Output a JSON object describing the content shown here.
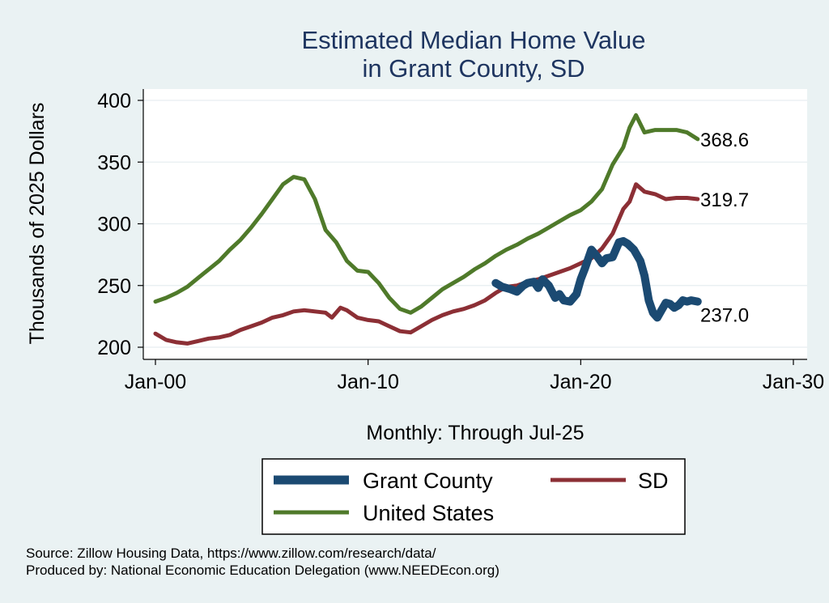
{
  "chart_data": {
    "type": "line",
    "title": "Estimated Median Home Value",
    "subtitle": "in Grant County, SD",
    "xlabel": "Monthly: Through Jul-25",
    "ylabel": "Thousands of 2025 Dollars",
    "xlim": [
      2000,
      2030
    ],
    "ylim": [
      200,
      400
    ],
    "x_tick_values": [
      2000,
      2010,
      2020,
      2030
    ],
    "x_ticks": [
      "Jan-00",
      "Jan-10",
      "Jan-20",
      "Jan-30"
    ],
    "y_ticks": [
      200,
      250,
      300,
      350,
      400
    ],
    "grid": true,
    "series": [
      {
        "name": "Grant County",
        "color": "#1b4a72",
        "end_label": "237.0",
        "x": [
          2016.0,
          2016.3,
          2016.7,
          2017.0,
          2017.3,
          2017.5,
          2017.8,
          2018.0,
          2018.2,
          2018.5,
          2018.8,
          2019.0,
          2019.2,
          2019.5,
          2019.8,
          2020.0,
          2020.2,
          2020.5,
          2020.8,
          2021.0,
          2021.2,
          2021.5,
          2021.8,
          2022.0,
          2022.2,
          2022.5,
          2022.8,
          2023.0,
          2023.2,
          2023.4,
          2023.6,
          2023.8,
          2024.0,
          2024.2,
          2024.4,
          2024.6,
          2024.8,
          2025.0,
          2025.2,
          2025.5
        ],
        "values": [
          252,
          249,
          247,
          245,
          250,
          252,
          253,
          248,
          255,
          250,
          240,
          243,
          238,
          237,
          243,
          255,
          264,
          279,
          273,
          268,
          272,
          273,
          285,
          286,
          284,
          279,
          270,
          258,
          238,
          228,
          224,
          230,
          236,
          235,
          232,
          234,
          238,
          237,
          238,
          237
        ]
      },
      {
        "name": "SD",
        "color": "#8c2f35",
        "end_label": "319.7",
        "x": [
          2000.0,
          2000.5,
          2001.0,
          2001.5,
          2002.0,
          2002.5,
          2003.0,
          2003.5,
          2004.0,
          2004.5,
          2005.0,
          2005.5,
          2006.0,
          2006.5,
          2007.0,
          2007.5,
          2008.0,
          2008.3,
          2008.7,
          2009.0,
          2009.5,
          2010.0,
          2010.5,
          2011.0,
          2011.5,
          2012.0,
          2012.5,
          2013.0,
          2013.5,
          2014.0,
          2014.5,
          2015.0,
          2015.5,
          2016.0,
          2016.5,
          2017.0,
          2017.5,
          2018.0,
          2018.5,
          2019.0,
          2019.5,
          2020.0,
          2020.5,
          2021.0,
          2021.5,
          2022.0,
          2022.3,
          2022.6,
          2023.0,
          2023.5,
          2024.0,
          2024.5,
          2025.0,
          2025.5
        ],
        "values": [
          211,
          206,
          204,
          203,
          205,
          207,
          208,
          210,
          214,
          217,
          220,
          224,
          226,
          229,
          230,
          229,
          228,
          224,
          232,
          230,
          224,
          222,
          221,
          217,
          213,
          212,
          217,
          222,
          226,
          229,
          231,
          234,
          238,
          244,
          249,
          250,
          253,
          255,
          258,
          261,
          264,
          268,
          272,
          280,
          292,
          312,
          318,
          332,
          326,
          324,
          320,
          321,
          321,
          320
        ]
      },
      {
        "name": "United States",
        "color": "#4f7a2a",
        "end_label": "368.6",
        "x": [
          2000.0,
          2000.5,
          2001.0,
          2001.5,
          2002.0,
          2002.5,
          2003.0,
          2003.5,
          2004.0,
          2004.5,
          2005.0,
          2005.5,
          2006.0,
          2006.5,
          2007.0,
          2007.5,
          2008.0,
          2008.5,
          2009.0,
          2009.5,
          2010.0,
          2010.5,
          2011.0,
          2011.5,
          2012.0,
          2012.5,
          2013.0,
          2013.5,
          2014.0,
          2014.5,
          2015.0,
          2015.5,
          2016.0,
          2016.5,
          2017.0,
          2017.5,
          2018.0,
          2018.5,
          2019.0,
          2019.5,
          2020.0,
          2020.5,
          2021.0,
          2021.5,
          2022.0,
          2022.3,
          2022.6,
          2023.0,
          2023.5,
          2024.0,
          2024.5,
          2025.0,
          2025.5
        ],
        "values": [
          237,
          240,
          244,
          249,
          256,
          263,
          270,
          279,
          287,
          297,
          308,
          320,
          332,
          338,
          336,
          320,
          295,
          285,
          270,
          262,
          261,
          252,
          240,
          231,
          228,
          233,
          240,
          247,
          252,
          257,
          263,
          268,
          274,
          279,
          283,
          288,
          292,
          297,
          302,
          307,
          311,
          318,
          328,
          348,
          362,
          378,
          388,
          374,
          376,
          376,
          376,
          374,
          368.6
        ]
      }
    ],
    "legend": {
      "position": "bottom",
      "columns": 2
    }
  },
  "source_note": "Source: Zillow Housing Data, https://www.zillow.com/research/data/",
  "producer_note": "Produced by: National Economic Education Delegation (www.NEEDEcon.org)"
}
